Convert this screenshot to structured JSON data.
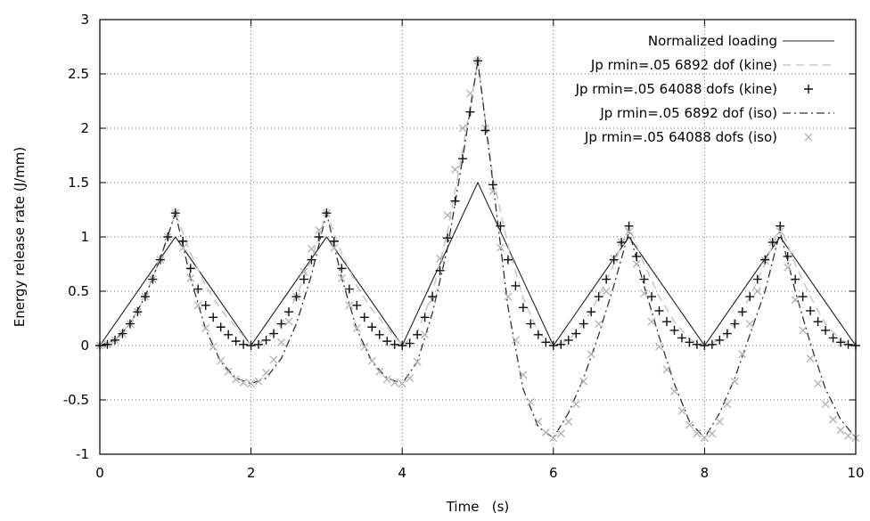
{
  "chart_data": {
    "type": "line",
    "xlabel": "Time   (s)",
    "ylabel": "Energy release rate (J/mm)",
    "xlim": [
      0,
      10
    ],
    "ylim": [
      -1,
      3
    ],
    "xticks": [
      "0",
      "2",
      "4",
      "6",
      "8",
      "10"
    ],
    "yticks": [
      "-1",
      "-0.5",
      "0",
      "0.5",
      "1",
      "1.5",
      "2",
      "2.5",
      "3"
    ],
    "grid": true,
    "legend_position": "top-right",
    "series": [
      {
        "name": "Normalized loading",
        "style": "solid",
        "color": "#222222",
        "x": [
          0,
          1,
          2,
          3,
          4,
          5,
          6,
          7,
          8,
          9,
          10
        ],
        "y": [
          0,
          1,
          0,
          1,
          0,
          1.5,
          0,
          1,
          0,
          1,
          0
        ]
      },
      {
        "name": "Jp rmin=.05 6892 dof (kine)",
        "style": "dashed-light",
        "color": "#c8c8c8",
        "x": [
          0,
          0.2,
          0.4,
          0.6,
          0.8,
          1.0,
          1.2,
          1.4,
          1.6,
          1.8,
          2.0,
          2.2,
          2.4,
          2.6,
          2.8,
          3.0,
          3.2,
          3.4,
          3.6,
          3.8,
          4.0,
          4.2,
          4.4,
          4.6,
          4.8,
          5.0,
          5.2,
          5.4,
          5.6,
          5.8,
          6.0,
          6.2,
          6.4,
          6.6,
          6.8,
          7.0,
          7.2,
          7.4,
          7.6,
          7.8,
          8.0,
          8.2,
          8.4,
          8.6,
          8.8,
          9.0,
          9.2,
          9.4,
          9.6,
          9.8,
          10.0
        ],
        "y": [
          0,
          0.05,
          0.2,
          0.45,
          0.8,
          1.22,
          0.85,
          0.55,
          0.33,
          0.17,
          0.0,
          0.05,
          0.2,
          0.45,
          0.8,
          1.22,
          0.85,
          0.55,
          0.33,
          0.17,
          0.0,
          0.12,
          0.48,
          1.05,
          1.8,
          2.62,
          1.55,
          0.92,
          0.44,
          0.12,
          0.0,
          0.05,
          0.2,
          0.45,
          0.75,
          1.1,
          0.75,
          0.45,
          0.22,
          0.06,
          0.0,
          0.05,
          0.2,
          0.45,
          0.75,
          1.1,
          0.75,
          0.45,
          0.2,
          0.05,
          0.0
        ]
      },
      {
        "name": "Jp rmin=.05 64088 dofs (kine)",
        "style": "plus-markers",
        "color": "#111111",
        "x": [
          0,
          0.1,
          0.2,
          0.3,
          0.4,
          0.5,
          0.6,
          0.7,
          0.8,
          0.9,
          1.0,
          1.1,
          1.2,
          1.3,
          1.4,
          1.5,
          1.6,
          1.7,
          1.8,
          1.9,
          2.0,
          2.1,
          2.2,
          2.3,
          2.4,
          2.5,
          2.6,
          2.7,
          2.8,
          2.9,
          3.0,
          3.1,
          3.2,
          3.3,
          3.4,
          3.5,
          3.6,
          3.7,
          3.8,
          3.9,
          4.0,
          4.1,
          4.2,
          4.3,
          4.4,
          4.5,
          4.6,
          4.7,
          4.8,
          4.9,
          5.0,
          5.1,
          5.2,
          5.3,
          5.4,
          5.5,
          5.6,
          5.7,
          5.8,
          5.9,
          6.0,
          6.1,
          6.2,
          6.3,
          6.4,
          6.5,
          6.6,
          6.7,
          6.8,
          6.9,
          7.0,
          7.1,
          7.2,
          7.3,
          7.4,
          7.5,
          7.6,
          7.7,
          7.8,
          7.9,
          8.0,
          8.1,
          8.2,
          8.3,
          8.4,
          8.5,
          8.6,
          8.7,
          8.8,
          8.9,
          9.0,
          9.1,
          9.2,
          9.3,
          9.4,
          9.5,
          9.6,
          9.7,
          9.8,
          9.9,
          10.0
        ],
        "y": [
          0,
          0.01,
          0.05,
          0.11,
          0.2,
          0.31,
          0.45,
          0.61,
          0.79,
          1.0,
          1.22,
          0.96,
          0.71,
          0.52,
          0.37,
          0.26,
          0.17,
          0.1,
          0.04,
          0.01,
          0.0,
          0.01,
          0.05,
          0.11,
          0.2,
          0.31,
          0.45,
          0.61,
          0.79,
          1.0,
          1.22,
          0.96,
          0.71,
          0.52,
          0.37,
          0.26,
          0.17,
          0.1,
          0.04,
          0.01,
          0.0,
          0.02,
          0.1,
          0.26,
          0.45,
          0.69,
          0.99,
          1.33,
          1.72,
          2.15,
          2.62,
          1.98,
          1.48,
          1.1,
          0.79,
          0.55,
          0.35,
          0.2,
          0.1,
          0.03,
          0.0,
          0.01,
          0.05,
          0.11,
          0.2,
          0.31,
          0.45,
          0.61,
          0.79,
          0.95,
          1.1,
          0.82,
          0.61,
          0.45,
          0.32,
          0.22,
          0.14,
          0.07,
          0.03,
          0.01,
          0.0,
          0.01,
          0.05,
          0.11,
          0.2,
          0.31,
          0.45,
          0.61,
          0.79,
          0.95,
          1.1,
          0.82,
          0.61,
          0.45,
          0.32,
          0.22,
          0.14,
          0.07,
          0.03,
          0.01,
          0.0
        ]
      },
      {
        "name": "Jp rmin=.05 6892 dof (iso)",
        "style": "dash-dot",
        "color": "#333333",
        "x": [
          0,
          0.2,
          0.4,
          0.6,
          0.8,
          1.0,
          1.2,
          1.4,
          1.6,
          1.8,
          2.0,
          2.2,
          2.4,
          2.6,
          2.8,
          3.0,
          3.2,
          3.4,
          3.6,
          3.8,
          4.0,
          4.2,
          4.4,
          4.6,
          4.8,
          5.0,
          5.2,
          5.4,
          5.6,
          5.8,
          6.0,
          6.2,
          6.4,
          6.6,
          6.8,
          7.0,
          7.2,
          7.4,
          7.6,
          7.8,
          8.0,
          8.2,
          8.4,
          8.6,
          8.8,
          9.0,
          9.2,
          9.4,
          9.6,
          9.8,
          10.0
        ],
        "y": [
          0,
          0.05,
          0.2,
          0.45,
          0.8,
          1.22,
          0.62,
          0.15,
          -0.15,
          -0.3,
          -0.35,
          -0.3,
          -0.12,
          0.2,
          0.65,
          1.22,
          0.62,
          0.15,
          -0.15,
          -0.3,
          -0.35,
          -0.15,
          0.3,
          0.9,
          1.72,
          2.62,
          1.5,
          0.35,
          -0.4,
          -0.75,
          -0.85,
          -0.62,
          -0.3,
          0.1,
          0.55,
          1.05,
          0.55,
          0.08,
          -0.35,
          -0.7,
          -0.85,
          -0.62,
          -0.3,
          0.1,
          0.5,
          1.05,
          0.5,
          0.02,
          -0.4,
          -0.68,
          -0.85
        ]
      },
      {
        "name": "Jp rmin=.05 64088 dofs (iso)",
        "style": "x-markers-light",
        "color": "#b4b4b4",
        "x": [
          0,
          0.1,
          0.2,
          0.3,
          0.4,
          0.5,
          0.6,
          0.7,
          0.8,
          0.9,
          1.0,
          1.1,
          1.2,
          1.3,
          1.4,
          1.5,
          1.6,
          1.7,
          1.8,
          1.9,
          2.0,
          2.1,
          2.2,
          2.3,
          2.4,
          2.5,
          2.6,
          2.7,
          2.8,
          2.9,
          3.0,
          3.1,
          3.2,
          3.3,
          3.4,
          3.5,
          3.6,
          3.7,
          3.8,
          3.9,
          4.0,
          4.1,
          4.2,
          4.3,
          4.4,
          4.5,
          4.6,
          4.7,
          4.8,
          4.9,
          5.0,
          5.1,
          5.2,
          5.3,
          5.4,
          5.5,
          5.6,
          5.7,
          5.8,
          5.9,
          6.0,
          6.1,
          6.2,
          6.3,
          6.4,
          6.5,
          6.6,
          6.7,
          6.8,
          6.9,
          7.0,
          7.1,
          7.2,
          7.3,
          7.4,
          7.5,
          7.6,
          7.7,
          7.8,
          7.9,
          8.0,
          8.1,
          8.2,
          8.3,
          8.4,
          8.5,
          8.6,
          8.7,
          8.8,
          8.9,
          9.0,
          9.1,
          9.2,
          9.3,
          9.4,
          9.5,
          9.6,
          9.7,
          9.8,
          9.9,
          10.0
        ],
        "y": [
          0,
          0.01,
          0.05,
          0.11,
          0.2,
          0.31,
          0.45,
          0.61,
          0.79,
          1.0,
          1.22,
          0.9,
          0.62,
          0.37,
          0.16,
          -0.01,
          -0.14,
          -0.24,
          -0.31,
          -0.34,
          -0.35,
          -0.33,
          -0.25,
          -0.13,
          0.03,
          0.22,
          0.45,
          0.68,
          0.89,
          1.06,
          1.22,
          0.9,
          0.62,
          0.37,
          0.16,
          -0.01,
          -0.14,
          -0.24,
          -0.31,
          -0.34,
          -0.35,
          -0.3,
          -0.15,
          0.1,
          0.42,
          0.8,
          1.2,
          1.62,
          2.0,
          2.32,
          2.62,
          2.0,
          1.42,
          0.9,
          0.45,
          0.05,
          -0.27,
          -0.52,
          -0.7,
          -0.8,
          -0.85,
          -0.81,
          -0.7,
          -0.54,
          -0.33,
          -0.08,
          0.2,
          0.5,
          0.8,
          0.95,
          1.05,
          0.75,
          0.48,
          0.22,
          -0.01,
          -0.22,
          -0.42,
          -0.6,
          -0.73,
          -0.81,
          -0.85,
          -0.81,
          -0.7,
          -0.54,
          -0.33,
          -0.08,
          0.2,
          0.5,
          0.78,
          0.95,
          1.05,
          0.72,
          0.42,
          0.14,
          -0.12,
          -0.35,
          -0.54,
          -0.68,
          -0.78,
          -0.83,
          -0.85
        ]
      }
    ]
  }
}
